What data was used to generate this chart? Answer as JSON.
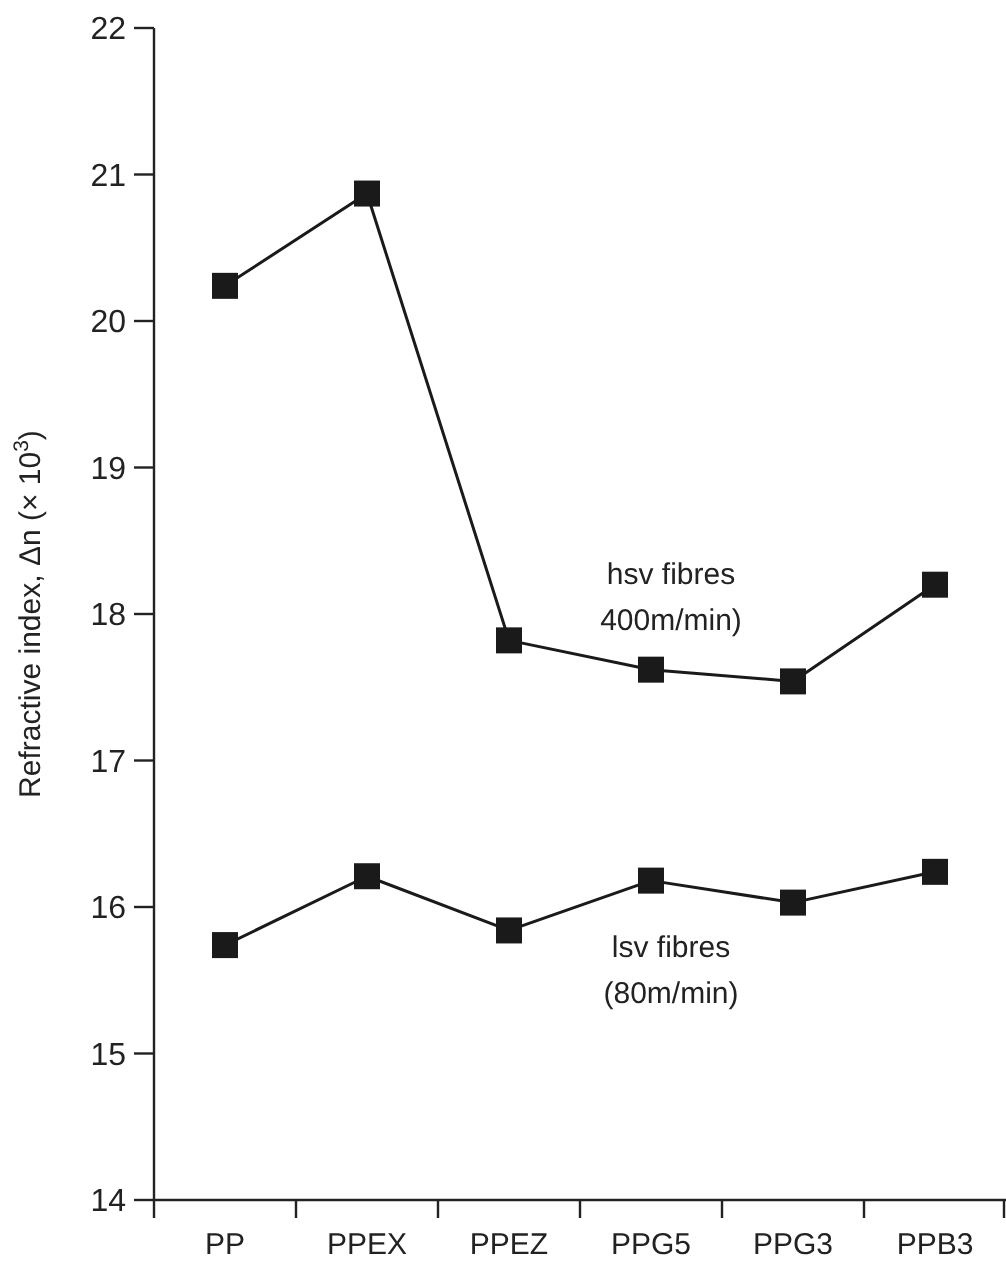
{
  "chart_data": {
    "type": "line",
    "ylabel": "Refractive index, Δn (× 10$^{3}$)",
    "categories": [
      "PP",
      "PPEX",
      "PPEZ",
      "PPG5",
      "PPG3",
      "PPB3"
    ],
    "series": [
      {
        "name": "hsv fibres\n400m/min)",
        "color": "#1a1a1a",
        "values": [
          20.24,
          20.87,
          17.82,
          17.62,
          17.54,
          18.2
        ]
      },
      {
        "name": "lsv fibres\n(80m/min)",
        "color": "#1a1a1a",
        "values": [
          15.74,
          16.21,
          15.84,
          16.18,
          16.03,
          16.24
        ]
      }
    ],
    "ylim": [
      14,
      22
    ],
    "yticks": [
      14,
      15,
      16,
      17,
      18,
      19,
      20,
      21,
      22
    ],
    "marker": "square",
    "line_style": "solid",
    "grid": false
  }
}
